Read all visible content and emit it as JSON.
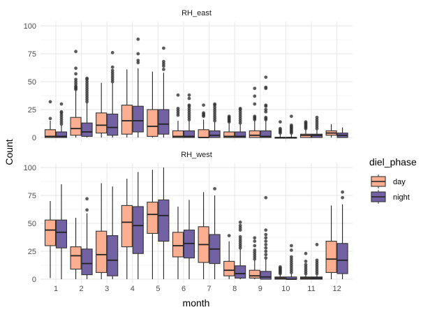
{
  "chart_data": {
    "type": "boxplot",
    "xlabel": "month",
    "ylabel": "Count",
    "ylim": [
      0,
      100
    ],
    "yticks": [
      0,
      25,
      50,
      75,
      100
    ],
    "categories": [
      "1",
      "2",
      "3",
      "4",
      "5",
      "6",
      "7",
      "8",
      "9",
      "10",
      "11",
      "12"
    ],
    "grid": true,
    "legend": {
      "title": "diel_phase",
      "position": "right",
      "entries": [
        {
          "name": "day",
          "color": "#FCAE91"
        },
        {
          "name": "night",
          "color": "#7261A3"
        }
      ]
    },
    "panels": [
      {
        "title": "RH_east",
        "series": [
          {
            "name": "day",
            "boxes": [
              {
                "min": 0,
                "q1": 0,
                "median": 1,
                "q3": 7,
                "max": 15,
                "outliers": [
                  17,
                  32
                ]
              },
              {
                "min": 0,
                "q1": 2,
                "median": 8,
                "q3": 18,
                "max": 42,
                "outliers": [
                  43,
                  44,
                  45,
                  46,
                  48,
                  50,
                  52,
                  57,
                  62,
                  77
                ]
              },
              {
                "min": 0,
                "q1": 4,
                "median": 11,
                "q3": 22,
                "max": 49,
                "outliers": []
              },
              {
                "min": 0,
                "q1": 3,
                "median": 15,
                "q3": 29,
                "max": 61,
                "outliers": []
              },
              {
                "min": 0,
                "q1": 1,
                "median": 10,
                "q3": 25,
                "max": 59,
                "outliers": []
              },
              {
                "min": 0,
                "q1": 0,
                "median": 1,
                "q3": 6,
                "max": 15,
                "outliers": [
                  20,
                  22,
                  24,
                  26,
                  38
                ]
              },
              {
                "min": 0,
                "q1": 0,
                "median": 0,
                "q3": 7,
                "max": 16,
                "outliers": [
                  19,
                  20,
                  21,
                  22,
                  29
                ]
              },
              {
                "min": 0,
                "q1": 0,
                "median": 1,
                "q3": 5,
                "max": 13,
                "outliers": [
                  14,
                  15,
                  16,
                  17,
                  18,
                  19
                ]
              },
              {
                "min": 0,
                "q1": 0,
                "median": 2,
                "q3": 6,
                "max": 15,
                "outliers": [
                  16,
                  17,
                  18,
                  19,
                  30,
                  37,
                  44
                ]
              },
              {
                "min": 0,
                "q1": 0,
                "median": 0,
                "q3": 0,
                "max": 3,
                "outliers": [
                  4,
                  5,
                  6,
                  7,
                  8,
                  14
                ]
              },
              {
                "min": 0,
                "q1": 0,
                "median": 2,
                "q3": 3,
                "max": 7,
                "outliers": [
                  8,
                  9,
                  10,
                  11,
                  12,
                  13,
                  14
                ]
              },
              {
                "min": 0,
                "q1": 2,
                "median": 4,
                "q3": 6,
                "max": 12,
                "outliers": []
              }
            ]
          },
          {
            "name": "night",
            "boxes": [
              {
                "min": 0,
                "q1": 0,
                "median": 1,
                "q3": 5,
                "max": 11,
                "outliers": [
                  12,
                  14,
                  16,
                  18,
                  20,
                  22,
                  23,
                  30
                ]
              },
              {
                "min": 0,
                "q1": 1,
                "median": 5,
                "q3": 13,
                "max": 31,
                "outliers": [
                  32,
                  34,
                  36,
                  38,
                  40,
                  42,
                  44,
                  46,
                  48,
                  50,
                  52,
                  53
                ]
              },
              {
                "min": 0,
                "q1": 2,
                "median": 9,
                "q3": 21,
                "max": 49,
                "outliers": [
                  50,
                  52,
                  54,
                  56,
                  58,
                  60,
                  63,
                  76
                ]
              },
              {
                "min": 0,
                "q1": 5,
                "median": 15,
                "q3": 28,
                "max": 62,
                "outliers": [
                  67,
                  69,
                  75,
                  88
                ]
              },
              {
                "min": 0,
                "q1": 3,
                "median": 12,
                "q3": 25,
                "max": 58,
                "outliers": [
                  61,
                  64,
                  66,
                  68,
                  80
                ]
              },
              {
                "min": 0,
                "q1": 0,
                "median": 1,
                "q3": 6,
                "max": 15,
                "outliers": [
                  16,
                  18,
                  20,
                  22,
                  24,
                  26,
                  28,
                  29,
                  35,
                  38
                ]
              },
              {
                "min": 0,
                "q1": 0,
                "median": 2,
                "q3": 6,
                "max": 14,
                "outliers": [
                  15,
                  17,
                  19,
                  21,
                  23,
                  25,
                  27,
                  29,
                  30
                ]
              },
              {
                "min": 0,
                "q1": 0,
                "median": 1,
                "q3": 5,
                "max": 12,
                "outliers": [
                  13,
                  15,
                  17,
                  19,
                  21,
                  23,
                  25,
                  26
                ]
              },
              {
                "min": 0,
                "q1": 0,
                "median": 1,
                "q3": 6,
                "max": 15,
                "outliers": [
                  16,
                  17,
                  18,
                  23,
                  25,
                  28,
                  29,
                  44,
                  45,
                  54
                ]
              },
              {
                "min": 0,
                "q1": 0,
                "median": 0,
                "q3": 0,
                "max": 3,
                "outliers": [
                  4,
                  5,
                  6,
                  7,
                  8,
                  9,
                  10,
                  11,
                  19
                ]
              },
              {
                "min": 0,
                "q1": 0,
                "median": 2,
                "q3": 3,
                "max": 7,
                "outliers": [
                  8,
                  10,
                  12,
                  14,
                  16,
                  18
                ]
              },
              {
                "min": 0,
                "q1": 0,
                "median": 2,
                "q3": 4,
                "max": 9,
                "outliers": []
              }
            ]
          }
        ]
      },
      {
        "title": "RH_west",
        "series": [
          {
            "name": "day",
            "boxes": [
              {
                "min": 1,
                "q1": 30,
                "median": 44,
                "q3": 53,
                "max": 70,
                "outliers": []
              },
              {
                "min": 0,
                "q1": 9,
                "median": 21,
                "q3": 29,
                "max": 55,
                "outliers": []
              },
              {
                "min": 0,
                "q1": 6,
                "median": 22,
                "q3": 43,
                "max": 86,
                "outliers": []
              },
              {
                "min": 0,
                "q1": 29,
                "median": 51,
                "q3": 66,
                "max": 90,
                "outliers": []
              },
              {
                "min": 0,
                "q1": 41,
                "median": 58,
                "q3": 69,
                "max": 98,
                "outliers": []
              },
              {
                "min": 0,
                "q1": 20,
                "median": 30,
                "q3": 42,
                "max": 65,
                "outliers": []
              },
              {
                "min": 0,
                "q1": 15,
                "median": 31,
                "q3": 47,
                "max": 78,
                "outliers": []
              },
              {
                "min": 0,
                "q1": 3,
                "median": 8,
                "q3": 16,
                "max": 34,
                "outliers": [
                  39
                ]
              },
              {
                "min": 0,
                "q1": 1,
                "median": 3,
                "q3": 8,
                "max": 17,
                "outliers": [
                  18,
                  20,
                  22,
                  24,
                  26,
                  30,
                  34,
                  37
                ]
              },
              {
                "min": 0,
                "q1": 0,
                "median": 1,
                "q3": 2,
                "max": 4,
                "outliers": [
                  5,
                  6,
                  7,
                  8,
                  9,
                  10,
                  11
                ]
              },
              {
                "min": 0,
                "q1": 0,
                "median": 1,
                "q3": 2,
                "max": 4,
                "outliers": [
                  5,
                  7,
                  9,
                  11,
                  13,
                  16,
                  23
                ]
              },
              {
                "min": 0,
                "q1": 6,
                "median": 18,
                "q3": 34,
                "max": 66,
                "outliers": []
              }
            ]
          },
          {
            "name": "night",
            "boxes": [
              {
                "min": 0,
                "q1": 28,
                "median": 42,
                "q3": 53,
                "max": 85,
                "outliers": []
              },
              {
                "min": 0,
                "q1": 4,
                "median": 14,
                "q3": 27,
                "max": 59,
                "outliers": [
                  62,
                  72
                ]
              },
              {
                "min": 0,
                "q1": 3,
                "median": 17,
                "q3": 39,
                "max": 83,
                "outliers": []
              },
              {
                "min": 0,
                "q1": 23,
                "median": 48,
                "q3": 65,
                "max": 96,
                "outliers": []
              },
              {
                "min": 0,
                "q1": 34,
                "median": 57,
                "q3": 71,
                "max": 100,
                "outliers": []
              },
              {
                "min": 0,
                "q1": 19,
                "median": 32,
                "q3": 44,
                "max": 71,
                "outliers": []
              },
              {
                "min": 0,
                "q1": 14,
                "median": 27,
                "q3": 40,
                "max": 75,
                "outliers": [
                  81
                ]
              },
              {
                "min": 0,
                "q1": 1,
                "median": 5,
                "q3": 12,
                "max": 27,
                "outliers": [
                  28,
                  30,
                  32,
                  34,
                  36,
                  38,
                  44,
                  46,
                  48,
                  51
                ]
              },
              {
                "min": 0,
                "q1": 0,
                "median": 2,
                "q3": 7,
                "max": 18,
                "outliers": [
                  19,
                  22,
                  25,
                  28,
                  31,
                  34,
                  37,
                  40,
                  44,
                  73
                ]
              },
              {
                "min": 0,
                "q1": 0,
                "median": 0,
                "q3": 2,
                "max": 5,
                "outliers": [
                  6,
                  8,
                  10,
                  12,
                  14,
                  16,
                  18,
                  20,
                  26,
                  30
                ]
              },
              {
                "min": 0,
                "q1": 0,
                "median": 1,
                "q3": 2,
                "max": 4,
                "outliers": [
                  5,
                  7,
                  9,
                  11,
                  13,
                  15,
                  17,
                  31
                ]
              },
              {
                "min": 0,
                "q1": 5,
                "median": 17,
                "q3": 32,
                "max": 67,
                "outliers": [
                  73,
                  78
                ]
              }
            ]
          }
        ]
      }
    ]
  }
}
